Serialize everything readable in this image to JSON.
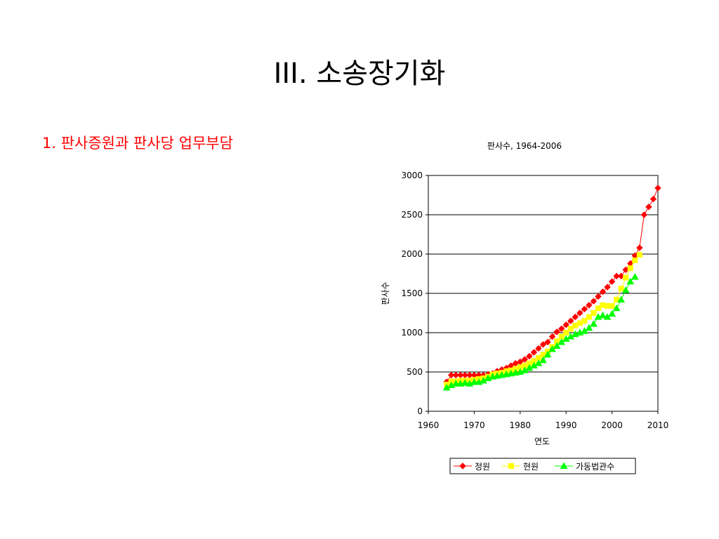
{
  "slide": {
    "title": "III. 소송장기화",
    "bullet": "1.  판사증원과 판사당 업무부담"
  },
  "chart_data": {
    "type": "line",
    "title": "판사수, 1964-2006",
    "xlabel": "연도",
    "ylabel": "판사수",
    "xlim": [
      1960,
      2010
    ],
    "ylim": [
      0,
      3000
    ],
    "x_ticks": [
      1960,
      1970,
      1980,
      1990,
      2000,
      2010
    ],
    "y_ticks": [
      0,
      500,
      1000,
      1500,
      2000,
      2500,
      3000
    ],
    "grid": "horizontal",
    "legend_position": "bottom",
    "series": [
      {
        "name": "정원",
        "color": "#ff0000",
        "marker": "diamond",
        "x": [
          1964,
          1965,
          1966,
          1967,
          1968,
          1969,
          1970,
          1971,
          1972,
          1973,
          1974,
          1975,
          1976,
          1977,
          1978,
          1979,
          1980,
          1981,
          1982,
          1983,
          1984,
          1985,
          1986,
          1987,
          1988,
          1989,
          1990,
          1991,
          1992,
          1993,
          1994,
          1995,
          1996,
          1997,
          1998,
          1999,
          2000,
          2001,
          2002,
          2003,
          2004,
          2005,
          2006,
          2007,
          2008,
          2009,
          2010
        ],
        "values": [
          375,
          460,
          460,
          460,
          460,
          460,
          460,
          460,
          460,
          470,
          480,
          510,
          530,
          550,
          580,
          610,
          630,
          660,
          700,
          750,
          800,
          850,
          880,
          950,
          1010,
          1050,
          1100,
          1150,
          1200,
          1250,
          1300,
          1350,
          1400,
          1460,
          1520,
          1580,
          1650,
          1720,
          1720,
          1800,
          1880,
          1980,
          2080,
          2500,
          2600,
          2700,
          2840
        ]
      },
      {
        "name": "현원",
        "color": "#ffff00",
        "marker": "square",
        "x": [
          1964,
          1965,
          1966,
          1967,
          1968,
          1969,
          1970,
          1971,
          1972,
          1973,
          1974,
          1975,
          1976,
          1977,
          1978,
          1979,
          1980,
          1981,
          1982,
          1983,
          1984,
          1985,
          1986,
          1987,
          1988,
          1989,
          1990,
          1991,
          1992,
          1993,
          1994,
          1995,
          1996,
          1997,
          1998,
          1999,
          2000,
          2001,
          2002,
          2003,
          2004,
          2005,
          2006
        ],
        "values": [
          340,
          380,
          380,
          390,
          390,
          390,
          400,
          410,
          420,
          440,
          470,
          480,
          490,
          510,
          520,
          540,
          560,
          580,
          610,
          640,
          680,
          720,
          760,
          820,
          890,
          950,
          1000,
          1050,
          1090,
          1120,
          1150,
          1200,
          1250,
          1310,
          1350,
          1340,
          1340,
          1420,
          1560,
          1700,
          1820,
          1920,
          1990
        ]
      },
      {
        "name": "가동법관수",
        "color": "#00ff00",
        "marker": "triangle",
        "x": [
          1964,
          1965,
          1966,
          1967,
          1968,
          1969,
          1970,
          1971,
          1972,
          1973,
          1974,
          1975,
          1976,
          1977,
          1978,
          1979,
          1980,
          1981,
          1982,
          1983,
          1984,
          1985,
          1986,
          1987,
          1988,
          1989,
          1990,
          1991,
          1992,
          1993,
          1994,
          1995,
          1996,
          1997,
          1998,
          1999,
          2000,
          2001,
          2002,
          2003,
          2004,
          2005
        ],
        "values": [
          300,
          330,
          350,
          350,
          360,
          350,
          370,
          370,
          390,
          420,
          440,
          450,
          460,
          470,
          480,
          490,
          500,
          520,
          550,
          580,
          610,
          650,
          720,
          790,
          830,
          880,
          920,
          950,
          980,
          1000,
          1020,
          1060,
          1110,
          1200,
          1220,
          1200,
          1240,
          1310,
          1420,
          1540,
          1650,
          1710
        ]
      }
    ]
  }
}
